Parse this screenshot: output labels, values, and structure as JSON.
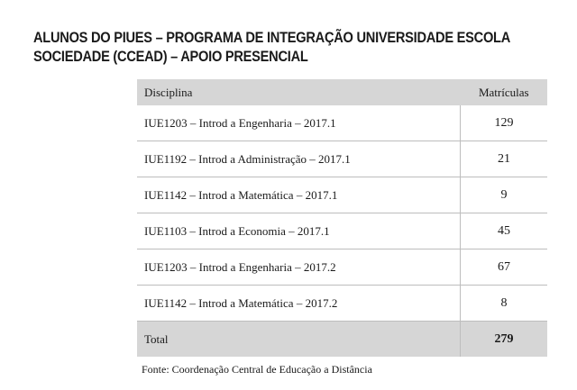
{
  "header": {
    "title_lines": [
      "ALUNOS DO PIUES – PROGRAMA DE INTEGRAÇÃO UNIVERSIDADE ESCOLA",
      "SOCIEDADE (CCEAD) – APOIO PRESENCIAL"
    ]
  },
  "table": {
    "columns": [
      "Disciplina",
      "Matrículas"
    ],
    "rows": [
      [
        "IUE1203 – Introd a Engenharia – 2017.1",
        129
      ],
      [
        "IUE1192 – Introd a Administração – 2017.1",
        21
      ],
      [
        "IUE1142 – Introd a Matemática – 2017.1",
        9
      ],
      [
        "IUE1103 – Introd a Economia – 2017.1",
        45
      ],
      [
        "IUE1203 – Introd a Engenharia – 2017.2",
        67
      ],
      [
        "IUE1142 – Introd a Matemática – 2017.2",
        8
      ]
    ],
    "total": [
      "Total",
      279
    ]
  },
  "source": "Fonte: Coordenação Central de Educação a Distância"
}
